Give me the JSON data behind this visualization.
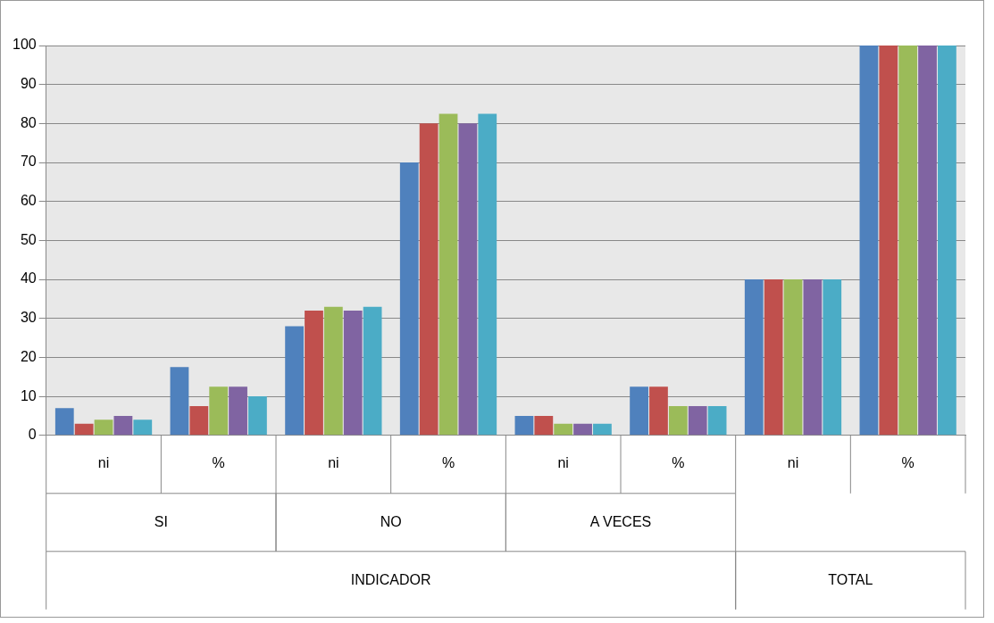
{
  "chart_data": {
    "type": "bar",
    "categories": [
      "ni",
      "%",
      "ni",
      "%",
      "ni",
      "%",
      "ni",
      "%"
    ],
    "series": [
      {
        "color": "#4f81bd",
        "values": [
          7,
          17.5,
          28,
          70,
          5,
          12.5,
          40,
          100
        ]
      },
      {
        "color": "#c0504d",
        "values": [
          3,
          7.5,
          32,
          80,
          5,
          12.5,
          40,
          100
        ]
      },
      {
        "color": "#9bbb59",
        "values": [
          4,
          12.5,
          33,
          82.5,
          3,
          7.5,
          40,
          100
        ]
      },
      {
        "color": "#8064a2",
        "values": [
          5,
          12.5,
          32,
          80,
          3,
          7.5,
          40,
          100
        ]
      },
      {
        "color": "#4bacc6",
        "values": [
          4,
          10,
          33,
          82.5,
          3,
          7.5,
          40,
          100
        ]
      }
    ],
    "ylim": [
      0,
      100
    ],
    "yticks": [
      0,
      10,
      20,
      30,
      40,
      50,
      60,
      70,
      80,
      90,
      100
    ],
    "grid": "y",
    "legend": false,
    "annotations": [
      "SI",
      "NO",
      "A VECES",
      "INDICADOR",
      "TOTAL"
    ]
  }
}
